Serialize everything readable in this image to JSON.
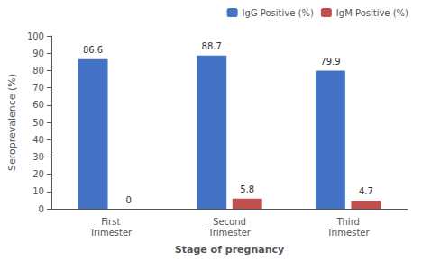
{
  "chart_data": {
    "type": "bar",
    "categories": [
      "First\nTrimester",
      "Second\nTrimester",
      "Third\nTrimester"
    ],
    "series": [
      {
        "name": "IgG Positive (%)",
        "color": "#4472C4",
        "values": [
          86.6,
          88.7,
          79.9
        ]
      },
      {
        "name": "IgM Positive (%)",
        "color": "#C0504D",
        "values": [
          0,
          5.8,
          4.7
        ]
      }
    ],
    "xlabel": "Stage of pregnancy",
    "ylabel": "Seroprevalence (%)",
    "ylim": [
      0,
      100
    ],
    "yticks": [
      0,
      10,
      20,
      30,
      40,
      50,
      60,
      70,
      80,
      90,
      100
    ],
    "data_labels": true,
    "legend": "upper right",
    "grid": false
  }
}
